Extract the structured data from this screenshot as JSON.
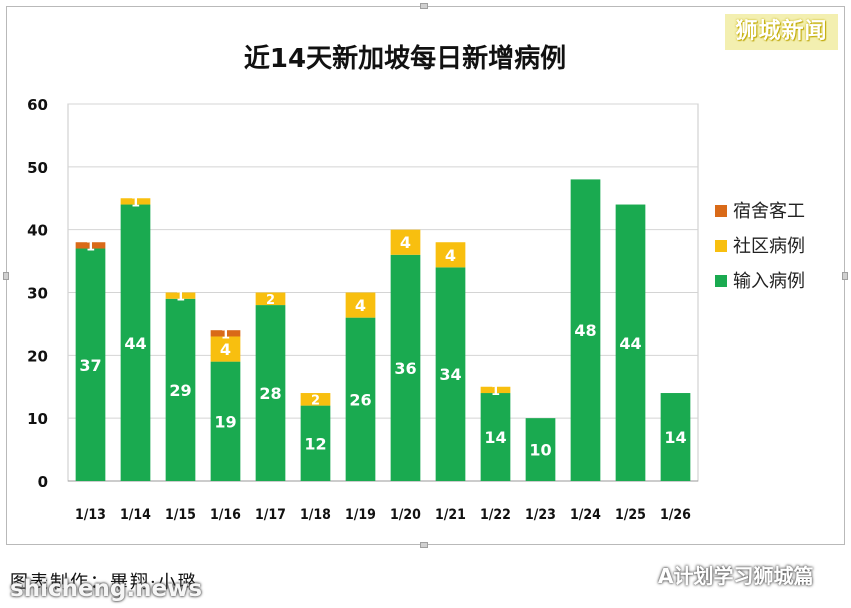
{
  "brand_tag": "狮城新闻",
  "credit": "图表制作：畢翔·小璐",
  "watermark_left": "shicheng.news",
  "watermark_right": "A计划学习狮城篇",
  "colors": {
    "imported": "#1aaa50",
    "community": "#f8bf0f",
    "dormitory": "#d96a18"
  },
  "chart_data": {
    "type": "bar",
    "stacked": true,
    "title": "近14天新加坡每日新增病例",
    "xlabel": "",
    "ylabel": "",
    "ylim": [
      0,
      60
    ],
    "yticks": [
      0,
      10,
      20,
      30,
      40,
      50,
      60
    ],
    "grid": true,
    "legend_position": "right",
    "categories": [
      "1/13",
      "1/14",
      "1/15",
      "1/16",
      "1/17",
      "1/18",
      "1/19",
      "1/20",
      "1/21",
      "1/22",
      "1/23",
      "1/24",
      "1/25",
      "1/26"
    ],
    "series": [
      {
        "name": "输入病例",
        "key": "imported",
        "values": [
          37,
          44,
          29,
          19,
          28,
          12,
          26,
          36,
          34,
          14,
          10,
          48,
          44,
          14
        ]
      },
      {
        "name": "社区病例",
        "key": "community",
        "values": [
          0,
          1,
          1,
          4,
          2,
          2,
          4,
          4,
          4,
          1,
          0,
          0,
          0,
          0
        ]
      },
      {
        "name": "宿舍客工",
        "key": "dormitory",
        "values": [
          1,
          0,
          0,
          1,
          0,
          0,
          0,
          0,
          0,
          0,
          0,
          0,
          0,
          0
        ]
      }
    ]
  }
}
